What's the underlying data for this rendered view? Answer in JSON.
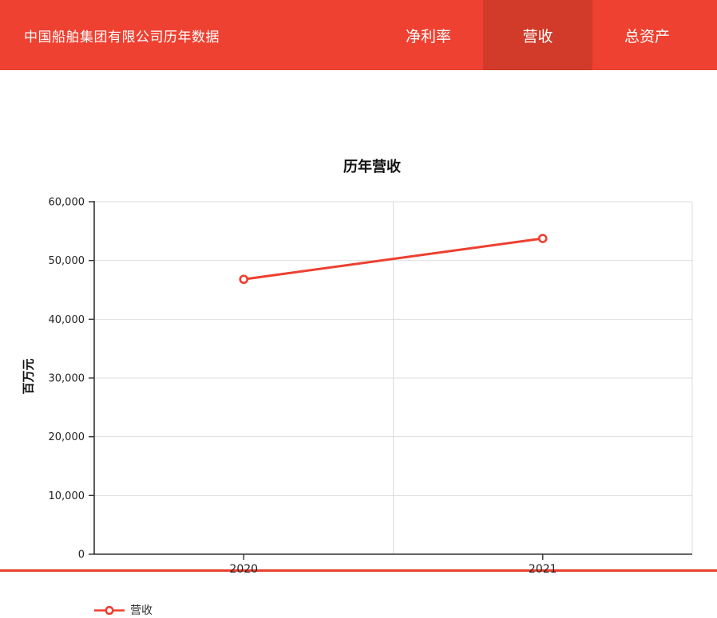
{
  "page": {
    "border_color": "#e8402f",
    "background": "#ffffff"
  },
  "header": {
    "background": "#ee4131",
    "active_tab_background": "#d23a29",
    "text_color": "#ffffff",
    "title": "中国船舶集团有限公司历年数据",
    "tabs": [
      {
        "label": "净利率",
        "active": false
      },
      {
        "label": "营收",
        "active": true
      },
      {
        "label": "总资产",
        "active": false
      }
    ]
  },
  "chart_data": {
    "type": "line",
    "title": "历年营收",
    "xlabel": "",
    "ylabel": "百万元",
    "categories": [
      "2020",
      "2021"
    ],
    "series": [
      {
        "name": "营收",
        "values": [
          46800,
          53750
        ],
        "color": "#ee3f2f"
      }
    ],
    "ylim": [
      0,
      60000
    ],
    "ytick_interval": 10000,
    "ytick_labels": [
      "0",
      "10,000",
      "20,000",
      "30,000",
      "40,000",
      "50,000",
      "60,000"
    ],
    "grid": true,
    "gridline_color": "#dddddd",
    "axis_color": "#333333",
    "tick_label_color": "#222222",
    "legend_position": "bottom-left",
    "legend": [
      "营收"
    ],
    "marker": "open-circle"
  }
}
